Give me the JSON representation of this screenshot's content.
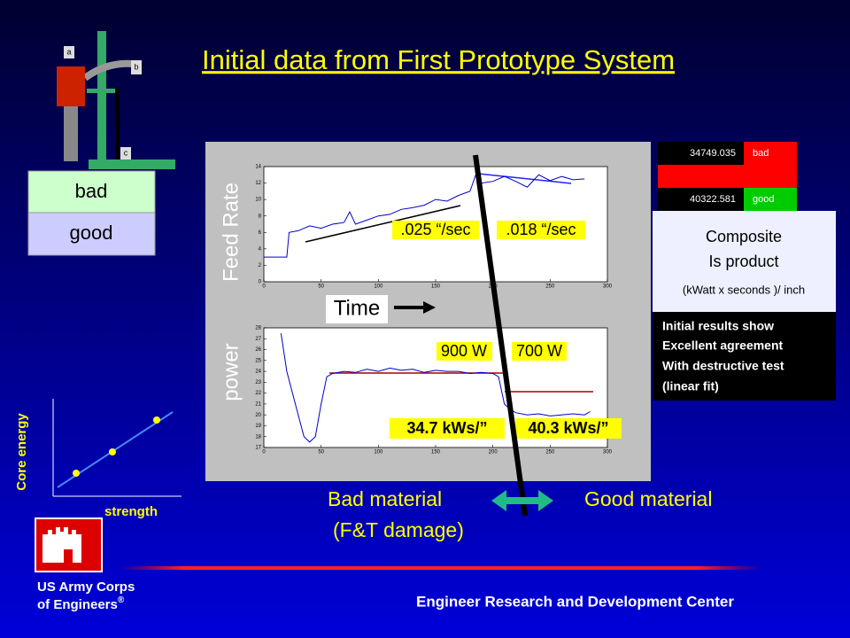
{
  "title": "Initial data from First Prototype System",
  "apparatus": {
    "labels": [
      "a",
      "b",
      "c"
    ],
    "bad": "bad",
    "good": "good"
  },
  "table": {
    "rows": [
      [
        "34749.035",
        "bad"
      ],
      [
        "40322.581",
        "good"
      ]
    ]
  },
  "composite": {
    "lines": [
      "Composite",
      "Is product",
      "(kWatt x seconds )/ inch"
    ]
  },
  "results": {
    "lines": [
      "Initial results show",
      "Excellent agreement",
      "With destructive test",
      "(linear fit)"
    ]
  },
  "feed_chart": {
    "type": "line",
    "ylabel": "Feed Rate",
    "xlabel": "Time",
    "xlim": [
      0,
      300
    ],
    "ylim": [
      0,
      14
    ],
    "xticks": [
      0,
      50,
      100,
      150,
      200,
      250,
      300
    ],
    "yticks": [
      0,
      2,
      4,
      6,
      8,
      10,
      12,
      14
    ],
    "x": [
      0,
      10,
      20,
      22,
      30,
      40,
      50,
      60,
      70,
      75,
      80,
      90,
      100,
      110,
      120,
      130,
      140,
      150,
      160,
      170,
      180,
      185,
      190,
      200,
      210,
      220,
      230,
      240,
      250,
      260,
      270,
      280
    ],
    "values": [
      3,
      3,
      3,
      6,
      6.2,
      6.8,
      6.5,
      7,
      7.2,
      8.5,
      7,
      7.5,
      8,
      8.2,
      8.8,
      9,
      9.3,
      10,
      9.8,
      10.5,
      11,
      13,
      12,
      12.2,
      12.8,
      12.2,
      11.5,
      13,
      12.3,
      12.8,
      12.4,
      12.5
    ],
    "annotations": [
      ".025 “/sec",
      ".018 “/sec"
    ]
  },
  "power_chart": {
    "type": "line",
    "ylabel": "power",
    "xlim": [
      0,
      300
    ],
    "ylim": [
      17,
      28
    ],
    "xticks": [
      0,
      50,
      100,
      150,
      200,
      250,
      300
    ],
    "yticks": [
      17,
      18,
      19,
      20,
      21,
      22,
      23,
      24,
      25,
      26,
      27,
      28
    ],
    "x": [
      0,
      10,
      15,
      20,
      30,
      35,
      40,
      45,
      50,
      55,
      60,
      70,
      80,
      90,
      100,
      110,
      120,
      130,
      140,
      150,
      160,
      170,
      180,
      190,
      200,
      205,
      210,
      215,
      220,
      230,
      240,
      250,
      260,
      270,
      280,
      285
    ],
    "values": [
      null,
      null,
      27.5,
      24,
      20,
      18,
      17.5,
      18,
      21,
      23.5,
      23.8,
      24,
      23.9,
      24.2,
      24,
      24.3,
      24.1,
      24.2,
      23.9,
      24.1,
      24,
      24,
      23.8,
      23.9,
      23.8,
      23.5,
      21,
      20.5,
      20.2,
      20,
      20.1,
      19.9,
      20,
      20.1,
      20,
      20.3
    ],
    "annotations": [
      "900 W",
      "700 W",
      "34.7 kWs/”",
      "40.3 kWs/”"
    ]
  },
  "mini_chart": {
    "ylabel": "Core energy",
    "xlabel": "strength"
  },
  "bottom": {
    "bad": "Bad material",
    "damage": "(F&T damage)",
    "good": "Good material"
  },
  "footer": {
    "org_line1": "US Army Corps",
    "org_line2": "of Engineers",
    "reg": "®",
    "center": "Engineer Research and Development Center"
  }
}
